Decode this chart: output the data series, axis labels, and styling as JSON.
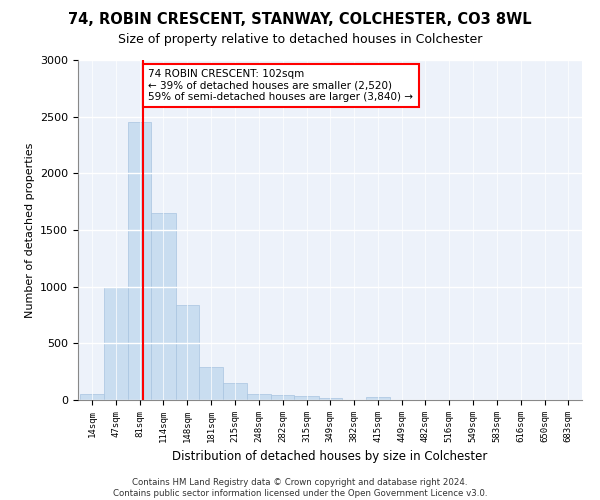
{
  "title_line1": "74, ROBIN CRESCENT, STANWAY, COLCHESTER, CO3 8WL",
  "title_line2": "Size of property relative to detached houses in Colchester",
  "xlabel": "Distribution of detached houses by size in Colchester",
  "ylabel": "Number of detached properties",
  "bar_color": "#c9ddf0",
  "bar_edge_color": "#a8c4e0",
  "property_line_x": 102,
  "property_line_color": "red",
  "annotation_text": "74 ROBIN CRESCENT: 102sqm\n← 39% of detached houses are smaller (2,520)\n59% of semi-detached houses are larger (3,840) →",
  "annotation_box_color": "white",
  "annotation_box_edge_color": "red",
  "footer_text": "Contains HM Land Registry data © Crown copyright and database right 2024.\nContains public sector information licensed under the Open Government Licence v3.0.",
  "categories": [
    "14sqm",
    "47sqm",
    "81sqm",
    "114sqm",
    "148sqm",
    "181sqm",
    "215sqm",
    "248sqm",
    "282sqm",
    "315sqm",
    "349sqm",
    "382sqm",
    "415sqm",
    "449sqm",
    "482sqm",
    "516sqm",
    "549sqm",
    "583sqm",
    "616sqm",
    "650sqm",
    "683sqm"
  ],
  "bar_left_edges": [
    14,
    47,
    81,
    114,
    148,
    181,
    215,
    248,
    282,
    315,
    349,
    382,
    415,
    449,
    482,
    516,
    549,
    583,
    616,
    650,
    683
  ],
  "bar_widths": [
    33,
    34,
    33,
    34,
    33,
    34,
    33,
    34,
    33,
    34,
    33,
    33,
    34,
    33,
    34,
    33,
    34,
    33,
    34,
    33,
    33
  ],
  "values": [
    50,
    1000,
    2450,
    1650,
    840,
    290,
    150,
    55,
    40,
    35,
    20,
    0,
    30,
    0,
    0,
    0,
    0,
    0,
    0,
    0,
    0
  ],
  "ylim": [
    0,
    3000
  ],
  "yticks": [
    0,
    500,
    1000,
    1500,
    2000,
    2500,
    3000
  ],
  "background_color": "#edf2fa",
  "grid_color": "white"
}
